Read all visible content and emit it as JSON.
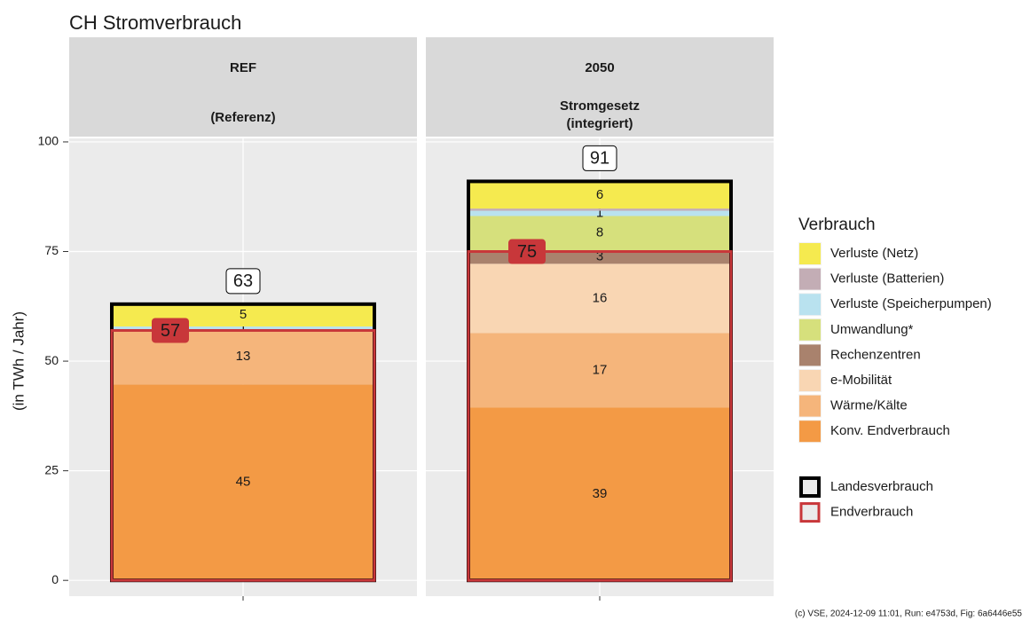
{
  "chart_data": {
    "type": "stacked_bar",
    "title": "CH Stromverbrauch",
    "y_label": "(in TWh / Jahr)",
    "caption": "(c) VSE, 2024-12-09 11:01, Run: e4753d, Fig: 6a6446e55",
    "categories": [
      "REF",
      "2050"
    ],
    "category_subtitles": [
      [
        "(Referenz)"
      ],
      [
        "Stromgesetz",
        "(integriert)"
      ]
    ],
    "ylim": [
      -3.6,
      100.8
    ],
    "yticks": [
      0,
      25,
      50,
      75,
      100
    ],
    "grid": true,
    "legend_title": "Verbrauch",
    "legend_position": "right",
    "series": [
      {
        "name": "Verluste (Netz)",
        "color": "#f5ea4f",
        "values": [
          5.3,
          6.1
        ],
        "value_labels": [
          "5",
          "6"
        ]
      },
      {
        "name": "Verluste (Batterien)",
        "color": "#c3adb5",
        "values": [
          0,
          0.5
        ],
        "value_labels": [
          null,
          null
        ]
      },
      {
        "name": "Verluste (Speicherpumpen)",
        "color": "#b9e2ef",
        "values": [
          0.6,
          1.2
        ],
        "value_labels": [
          "1",
          "1"
        ]
      },
      {
        "name": "Umwandlung*",
        "color": "#d6e07c",
        "values": [
          0,
          7.8
        ],
        "value_labels": [
          null,
          "8"
        ]
      },
      {
        "name": "Rechenzentren",
        "color": "#a9826d",
        "values": [
          0,
          3.1
        ],
        "value_labels": [
          null,
          "3"
        ]
      },
      {
        "name": "e-Mobilität",
        "color": "#f9d6b3",
        "values": [
          0,
          15.8
        ],
        "value_labels": [
          null,
          "16"
        ]
      },
      {
        "name": "Wärme/Kälte",
        "color": "#f5b57b",
        "values": [
          12.6,
          17
        ],
        "value_labels": [
          "13",
          "17"
        ]
      },
      {
        "name": "Konv. Endverbrauch",
        "color": "#f39a45",
        "values": [
          44.7,
          39.4
        ],
        "value_labels": [
          "45",
          "39"
        ]
      }
    ],
    "totals": [
      {
        "name": "Landesverbrauch",
        "color": "#000000",
        "values": [
          63,
          91
        ]
      },
      {
        "name": "Endverbrauch",
        "color": "#c8373a",
        "values": [
          57,
          75
        ]
      }
    ]
  }
}
